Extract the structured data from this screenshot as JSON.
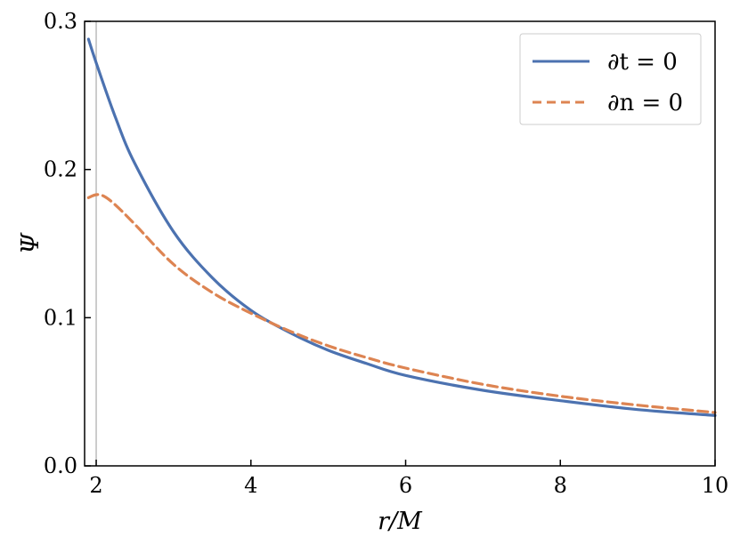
{
  "chart_data": {
    "type": "line",
    "title": "",
    "xlabel": "r/M",
    "ylabel": "Ψ",
    "xlim": [
      1.85,
      10
    ],
    "ylim": [
      0,
      0.3
    ],
    "xticks": [
      2,
      4,
      6,
      8,
      10
    ],
    "xtick_labels": [
      "2",
      "4",
      "6",
      "8",
      "10"
    ],
    "yticks": [
      0.0,
      0.1,
      0.2,
      0.3
    ],
    "ytick_labels": [
      "0.0",
      "0.1",
      "0.2",
      "0.3"
    ],
    "grid": false,
    "legend_position": "top-right",
    "vline_x": 2,
    "series": [
      {
        "name": "∂t = 0",
        "color": "#4c72b0",
        "style": "solid",
        "x": [
          1.9,
          2.0,
          2.25,
          2.5,
          3.0,
          3.5,
          4.0,
          4.5,
          5.0,
          5.5,
          6.0,
          7.0,
          8.0,
          9.0,
          10.0
        ],
        "y": [
          0.288,
          0.272,
          0.235,
          0.204,
          0.158,
          0.127,
          0.105,
          0.09,
          0.078,
          0.069,
          0.061,
          0.051,
          0.044,
          0.038,
          0.034
        ]
      },
      {
        "name": "∂n = 0",
        "color": "#dd8452",
        "style": "dashed",
        "x": [
          1.9,
          2.0,
          2.1,
          2.25,
          2.5,
          3.0,
          3.5,
          4.0,
          4.5,
          5.0,
          5.5,
          6.0,
          7.0,
          8.0,
          9.0,
          10.0
        ],
        "y": [
          0.181,
          0.183,
          0.182,
          0.176,
          0.163,
          0.136,
          0.117,
          0.103,
          0.091,
          0.081,
          0.073,
          0.066,
          0.055,
          0.047,
          0.041,
          0.036
        ]
      }
    ]
  }
}
